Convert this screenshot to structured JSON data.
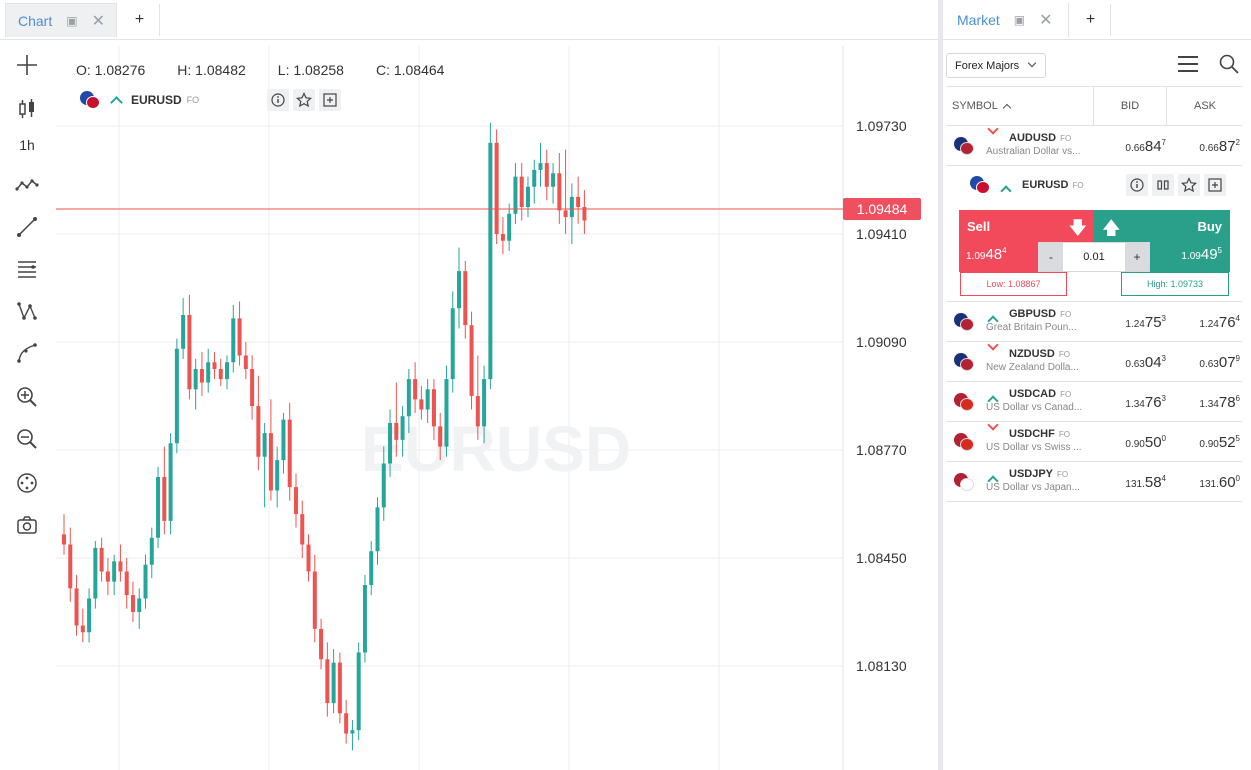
{
  "chart_tab": {
    "label": "Chart"
  },
  "tab_add_label": "+",
  "toolbar": {
    "timeframe": "1h"
  },
  "ohlc": {
    "open": "O: 1.08276",
    "high": "H: 1.08482",
    "low": "L: 1.08258",
    "close": "C: 1.08464"
  },
  "chart_symbol": {
    "name": "EURUSD",
    "tag": "FO"
  },
  "watermark": "EURUSD",
  "current_price": "1.09484",
  "chart_data": {
    "type": "candlestick",
    "y_ticks": [
      1.0973,
      1.0941,
      1.0909,
      1.0877,
      1.0845,
      1.0813
    ],
    "y_tick_labels": [
      "1.09730",
      "1.09410",
      "1.09090",
      "1.08770",
      "1.08450",
      "1.08130"
    ],
    "ylim": [
      1.0785,
      1.1
    ],
    "current_price": 1.09484,
    "candles": [
      [
        1.0852,
        1.0858,
        1.0846,
        1.0849
      ],
      [
        1.0849,
        1.0854,
        1.0832,
        1.0836
      ],
      [
        1.0836,
        1.084,
        1.0822,
        1.0825
      ],
      [
        1.0825,
        1.083,
        1.082,
        1.0823
      ],
      [
        1.0823,
        1.0836,
        1.082,
        1.0833
      ],
      [
        1.0833,
        1.085,
        1.083,
        1.0848
      ],
      [
        1.0848,
        1.0851,
        1.0838,
        1.0841
      ],
      [
        1.0841,
        1.0845,
        1.0834,
        1.0838
      ],
      [
        1.0838,
        1.0846,
        1.0834,
        1.0844
      ],
      [
        1.0844,
        1.0849,
        1.0838,
        1.0841
      ],
      [
        1.0841,
        1.0845,
        1.083,
        1.0834
      ],
      [
        1.0834,
        1.0838,
        1.0826,
        1.0829
      ],
      [
        1.0829,
        1.0836,
        1.0824,
        1.0833
      ],
      [
        1.0833,
        1.0846,
        1.083,
        1.0843
      ],
      [
        1.0843,
        1.0854,
        1.0839,
        1.0851
      ],
      [
        1.0851,
        1.0872,
        1.0848,
        1.0869
      ],
      [
        1.0869,
        1.0878,
        1.0852,
        1.0856
      ],
      [
        1.0856,
        1.0882,
        1.0852,
        1.0879
      ],
      [
        1.0879,
        1.091,
        1.0876,
        1.0907
      ],
      [
        1.0907,
        1.0922,
        1.0904,
        1.0917
      ],
      [
        1.0917,
        1.0923,
        1.0892,
        1.0895
      ],
      [
        1.0895,
        1.0904,
        1.0889,
        1.0901
      ],
      [
        1.0901,
        1.0906,
        1.0893,
        1.0897
      ],
      [
        1.0897,
        1.0907,
        1.0894,
        1.0903
      ],
      [
        1.0903,
        1.0906,
        1.0898,
        1.0901
      ],
      [
        1.0901,
        1.0904,
        1.0896,
        1.0898
      ],
      [
        1.0898,
        1.0905,
        1.0895,
        1.0903
      ],
      [
        1.0903,
        1.092,
        1.09,
        1.0916
      ],
      [
        1.0916,
        1.0921,
        1.0902,
        1.0905
      ],
      [
        1.0905,
        1.0909,
        1.0898,
        1.0901
      ],
      [
        1.0901,
        1.0905,
        1.0886,
        1.089
      ],
      [
        1.089,
        1.0899,
        1.0871,
        1.0875
      ],
      [
        1.0875,
        1.0885,
        1.086,
        1.0882
      ],
      [
        1.0882,
        1.0892,
        1.0862,
        1.0865
      ],
      [
        1.0865,
        1.0878,
        1.086,
        1.0874
      ],
      [
        1.0874,
        1.0888,
        1.087,
        1.0886
      ],
      [
        1.0886,
        1.0891,
        1.0862,
        1.0866
      ],
      [
        1.0866,
        1.087,
        1.0854,
        1.0858
      ],
      [
        1.0858,
        1.0862,
        1.0845,
        1.0849
      ],
      [
        1.0849,
        1.0852,
        1.0838,
        1.0841
      ],
      [
        1.0841,
        1.0846,
        1.082,
        1.0824
      ],
      [
        1.0824,
        1.0827,
        1.0812,
        1.0815
      ],
      [
        1.0815,
        1.082,
        1.0798,
        1.0802
      ],
      [
        1.0802,
        1.0818,
        1.0799,
        1.0814
      ],
      [
        1.0814,
        1.0817,
        1.0796,
        1.0799
      ],
      [
        1.0799,
        1.0803,
        1.079,
        1.0793
      ],
      [
        1.0793,
        1.0797,
        1.0788,
        1.0794
      ],
      [
        1.0794,
        1.082,
        1.0791,
        1.0817
      ],
      [
        1.0817,
        1.084,
        1.0814,
        1.0837
      ],
      [
        1.0837,
        1.085,
        1.0834,
        1.0847
      ],
      [
        1.0847,
        1.0863,
        1.0843,
        1.086
      ],
      [
        1.086,
        1.0878,
        1.0856,
        1.0873
      ],
      [
        1.0873,
        1.0889,
        1.0869,
        1.0885
      ],
      [
        1.0885,
        1.0897,
        1.0875,
        1.088
      ],
      [
        1.088,
        1.089,
        1.0875,
        1.0887
      ],
      [
        1.0887,
        1.0901,
        1.0882,
        1.0898
      ],
      [
        1.0898,
        1.0903,
        1.0888,
        1.0892
      ],
      [
        1.0892,
        1.0896,
        1.0886,
        1.0889
      ],
      [
        1.0889,
        1.0898,
        1.0885,
        1.0895
      ],
      [
        1.0895,
        1.0898,
        1.088,
        1.0884
      ],
      [
        1.0884,
        1.0888,
        1.0874,
        1.0878
      ],
      [
        1.0878,
        1.0902,
        1.0875,
        1.0898
      ],
      [
        1.0898,
        1.0924,
        1.0894,
        1.0919
      ],
      [
        1.0919,
        1.0937,
        1.0913,
        1.093
      ],
      [
        1.093,
        1.0933,
        1.091,
        1.0914
      ],
      [
        1.0914,
        1.0918,
        1.0889,
        1.0893
      ],
      [
        1.0893,
        1.0905,
        1.088,
        1.0884
      ],
      [
        1.0884,
        1.0902,
        1.0879,
        1.0898
      ],
      [
        1.0898,
        1.0974,
        1.0895,
        1.0968
      ],
      [
        1.0968,
        1.0972,
        1.0938,
        1.0941
      ],
      [
        1.0941,
        1.0946,
        1.0935,
        1.0939
      ],
      [
        1.0939,
        1.095,
        1.0936,
        1.0947
      ],
      [
        1.0947,
        1.0962,
        1.0944,
        1.0958
      ],
      [
        1.0958,
        1.0962,
        1.0945,
        1.0949
      ],
      [
        1.0949,
        1.0958,
        1.0946,
        1.0955
      ],
      [
        1.0955,
        1.0963,
        1.095,
        1.096
      ],
      [
        1.096,
        1.0968,
        1.0955,
        1.0962
      ],
      [
        1.0962,
        1.0966,
        1.0951,
        1.0955
      ],
      [
        1.0955,
        1.0962,
        1.095,
        1.0959
      ],
      [
        1.0959,
        1.0965,
        1.0944,
        1.0948
      ],
      [
        1.0948,
        1.0966,
        1.0941,
        1.0946
      ],
      [
        1.0946,
        1.0956,
        1.0938,
        1.0952
      ],
      [
        1.0952,
        1.0958,
        1.0944,
        1.0949
      ],
      [
        1.0949,
        1.0954,
        1.0941,
        1.0945
      ]
    ]
  },
  "market_tab": {
    "label": "Market"
  },
  "market_filter": "Forex Majors",
  "table_header": {
    "symbol": "SYMBOL",
    "bid": "BID",
    "ask": "ASK"
  },
  "rows": [
    {
      "symbol": "AUDUSD",
      "tag": "FO",
      "desc": "Australian Dollar vs...",
      "dir": "down",
      "bid": {
        "pre": "0.66",
        "big": "84",
        "sup": "7"
      },
      "ask": {
        "pre": "0.66",
        "big": "87",
        "sup": "2"
      },
      "flag": [
        "#1c2f7a",
        "#b22234"
      ]
    },
    {
      "symbol": "GBPUSD",
      "tag": "FO",
      "desc": "Great Britain Poun...",
      "dir": "up",
      "bid": {
        "pre": "1.24",
        "big": "75",
        "sup": "3"
      },
      "ask": {
        "pre": "1.24",
        "big": "76",
        "sup": "4"
      },
      "flag": [
        "#1c2f7a",
        "#b22234"
      ]
    },
    {
      "symbol": "NZDUSD",
      "tag": "FO",
      "desc": "New Zealand Dolla...",
      "dir": "down",
      "bid": {
        "pre": "0.63",
        "big": "04",
        "sup": "3"
      },
      "ask": {
        "pre": "0.63",
        "big": "07",
        "sup": "9"
      },
      "flag": [
        "#1c2f7a",
        "#b22234"
      ]
    },
    {
      "symbol": "USDCAD",
      "tag": "FO",
      "desc": "US Dollar vs Canad...",
      "dir": "up",
      "bid": {
        "pre": "1.34",
        "big": "76",
        "sup": "3"
      },
      "ask": {
        "pre": "1.34",
        "big": "78",
        "sup": "6"
      },
      "flag": [
        "#b22234",
        "#d52b1e"
      ]
    },
    {
      "symbol": "USDCHF",
      "tag": "FO",
      "desc": "US Dollar vs Swiss ...",
      "dir": "down",
      "bid": {
        "pre": "0.90",
        "big": "50",
        "sup": "0"
      },
      "ask": {
        "pre": "0.90",
        "big": "52",
        "sup": "5"
      },
      "flag": [
        "#b22234",
        "#d52b1e"
      ]
    },
    {
      "symbol": "USDJPY",
      "tag": "FO",
      "desc": "US Dollar vs Japan...",
      "dir": "up",
      "bid": {
        "pre": "131.",
        "big": "58",
        "sup": "4"
      },
      "ask": {
        "pre": "131.",
        "big": "60",
        "sup": "0"
      },
      "flag": [
        "#b22234",
        "#ffffff"
      ]
    }
  ],
  "expanded": {
    "symbol": "EURUSD",
    "tag": "FO",
    "sell_label": "Sell",
    "buy_label": "Buy",
    "sell_price": {
      "pre": "1.09",
      "big": "48",
      "sup": "4"
    },
    "buy_price": {
      "pre": "1.09",
      "big": "49",
      "sup": "5"
    },
    "qty_minus": "-",
    "qty_value": "0.01",
    "qty_plus": "+",
    "low": "Low: 1.08867",
    "high": "High: 1.09733"
  },
  "colors": {
    "up": "#26a69a",
    "down": "#ef5350",
    "sell": "#f24a5b",
    "buy": "#2aa08a",
    "accent": "#4a8fd4"
  }
}
